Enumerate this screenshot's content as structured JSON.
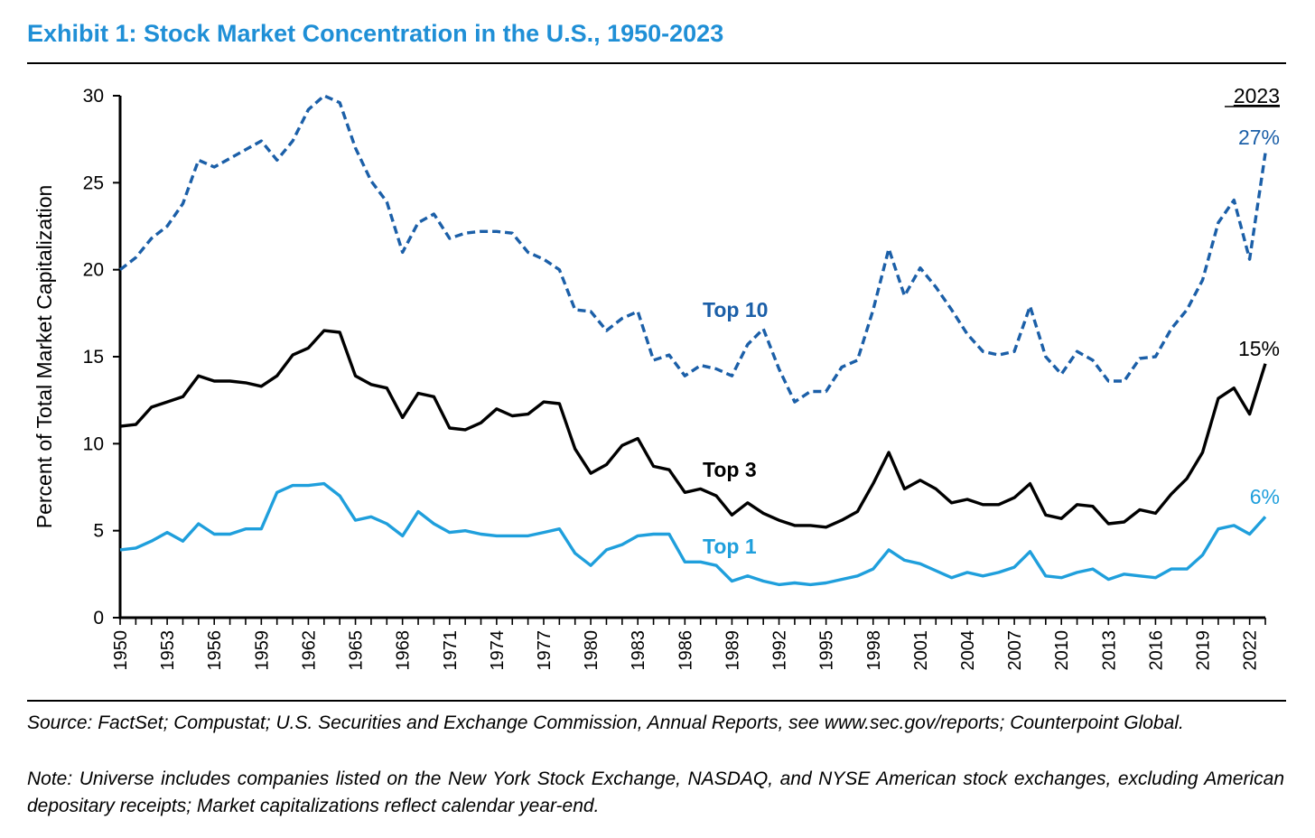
{
  "title": "Exhibit 1: Stock Market Concentration in the U.S., 1950-2023",
  "source": "Source: FactSet; Compustat; U.S. Securities and Exchange Commission, Annual Reports, see www.sec.gov/reports; Counterpoint Global.",
  "note": "Note: Universe includes companies listed on the New York Stock Exchange, NASDAQ, and NYSE American stock exchanges, excluding American depositary receipts; Market capitalizations reflect calendar year-end.",
  "colors": {
    "title": "#1f8fd6",
    "top10": "#1b5fa8",
    "top3": "#000000",
    "top1": "#1f9fdc"
  },
  "chart_data": {
    "type": "line",
    "ylabel": "Percent of Total Market Capitalization",
    "xlabel": "",
    "ylim": [
      0,
      30
    ],
    "yticks": [
      0,
      5,
      10,
      15,
      20,
      25,
      30
    ],
    "xticks": [
      1950,
      1953,
      1956,
      1959,
      1962,
      1965,
      1968,
      1971,
      1974,
      1977,
      1980,
      1983,
      1986,
      1989,
      1992,
      1995,
      1998,
      2001,
      2004,
      2007,
      2010,
      2013,
      2016,
      2019,
      2022
    ],
    "x": [
      1950,
      1951,
      1952,
      1953,
      1954,
      1955,
      1956,
      1957,
      1958,
      1959,
      1960,
      1961,
      1962,
      1963,
      1964,
      1965,
      1966,
      1967,
      1968,
      1969,
      1970,
      1971,
      1972,
      1973,
      1974,
      1975,
      1976,
      1977,
      1978,
      1979,
      1980,
      1981,
      1982,
      1983,
      1984,
      1985,
      1986,
      1987,
      1988,
      1989,
      1990,
      1991,
      1992,
      1993,
      1994,
      1995,
      1996,
      1997,
      1998,
      1999,
      2000,
      2001,
      2002,
      2003,
      2004,
      2005,
      2006,
      2007,
      2008,
      2009,
      2010,
      2011,
      2012,
      2013,
      2014,
      2015,
      2016,
      2017,
      2018,
      2019,
      2020,
      2021,
      2022,
      2023
    ],
    "series": [
      {
        "name": "Top 10",
        "style": "dashed",
        "values": [
          20.0,
          20.7,
          21.8,
          22.5,
          23.8,
          26.3,
          25.9,
          26.4,
          26.9,
          27.4,
          26.3,
          27.4,
          29.2,
          30.0,
          29.6,
          27.0,
          25.1,
          23.9,
          21.0,
          22.7,
          23.2,
          21.8,
          22.1,
          22.2,
          22.2,
          22.1,
          21.0,
          20.6,
          20.0,
          17.7,
          17.6,
          16.5,
          17.2,
          17.6,
          14.8,
          15.1,
          13.9,
          14.5,
          14.3,
          13.9,
          15.7,
          16.6,
          14.3,
          12.4,
          13.0,
          13.0,
          14.4,
          14.8,
          17.7,
          21.2,
          18.5,
          20.1,
          19.0,
          17.7,
          16.3,
          15.3,
          15.1,
          15.3,
          17.9,
          15.0,
          14.0,
          15.3,
          14.8,
          13.6,
          13.6,
          14.9,
          15.0,
          16.6,
          17.7,
          19.4,
          22.7,
          24.0,
          20.6,
          26.7
        ]
      },
      {
        "name": "Top 3",
        "style": "solid",
        "values": [
          11.0,
          11.1,
          12.1,
          12.4,
          12.7,
          13.9,
          13.6,
          13.6,
          13.5,
          13.3,
          13.9,
          15.1,
          15.5,
          16.5,
          16.4,
          13.9,
          13.4,
          13.2,
          11.5,
          12.9,
          12.7,
          10.9,
          10.8,
          11.2,
          12.0,
          11.6,
          11.7,
          12.4,
          12.3,
          9.7,
          8.3,
          8.8,
          9.9,
          10.3,
          8.7,
          8.5,
          7.2,
          7.4,
          7.0,
          5.9,
          6.6,
          6.0,
          5.6,
          5.3,
          5.3,
          5.2,
          5.6,
          6.1,
          7.7,
          9.5,
          7.4,
          7.9,
          7.4,
          6.6,
          6.8,
          6.5,
          6.5,
          6.9,
          7.7,
          5.9,
          5.7,
          6.5,
          6.4,
          5.4,
          5.5,
          6.2,
          6.0,
          7.1,
          8.0,
          9.5,
          12.6,
          13.2,
          11.7,
          14.6
        ]
      },
      {
        "name": "Top 1",
        "style": "solid",
        "values": [
          3.9,
          4.0,
          4.4,
          4.9,
          4.4,
          5.4,
          4.8,
          4.8,
          5.1,
          5.1,
          7.2,
          7.6,
          7.6,
          7.7,
          7.0,
          5.6,
          5.8,
          5.4,
          4.7,
          6.1,
          5.4,
          4.9,
          5.0,
          4.8,
          4.7,
          4.7,
          4.7,
          4.9,
          5.1,
          3.7,
          3.0,
          3.9,
          4.2,
          4.7,
          4.8,
          4.8,
          3.2,
          3.2,
          3.0,
          2.1,
          2.4,
          2.1,
          1.9,
          2.0,
          1.9,
          2.0,
          2.2,
          2.4,
          2.8,
          3.9,
          3.3,
          3.1,
          2.7,
          2.3,
          2.6,
          2.4,
          2.6,
          2.9,
          3.8,
          2.4,
          2.3,
          2.6,
          2.8,
          2.2,
          2.5,
          2.4,
          2.3,
          2.8,
          2.8,
          3.6,
          5.1,
          5.3,
          4.8,
          5.8
        ]
      }
    ],
    "annotations": {
      "year_header": "2023",
      "top10_end": "27%",
      "top3_end": "15%",
      "top1_end": "6%",
      "top10_label": "Top 10",
      "top3_label": "Top 3",
      "top1_label": "Top 1"
    },
    "grid": false,
    "legend": "inline labels"
  }
}
